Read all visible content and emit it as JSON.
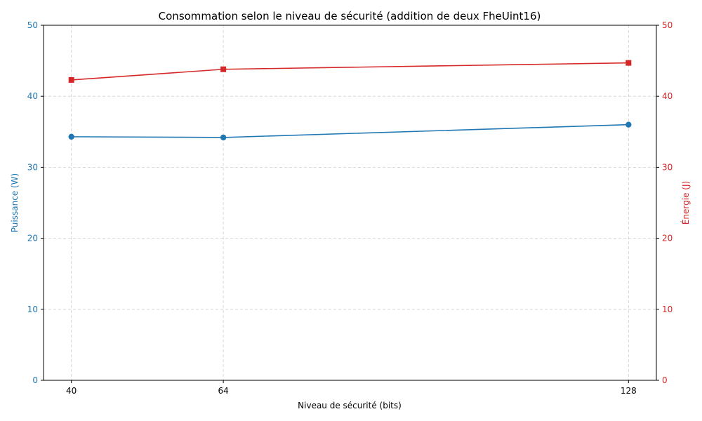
{
  "chart_data": {
    "type": "line",
    "title": "Consommation selon le niveau de sécurité (addition de deux FheUint16)",
    "xlabel": "Niveau de sécurité (bits)",
    "ylabel_left": "Puissance (W)",
    "ylabel_right": "Énergie (J)",
    "x": [
      40,
      64,
      128
    ],
    "xlim": [
      35.6,
      132.4
    ],
    "ylim_left": [
      0,
      50
    ],
    "ylim_right": [
      0,
      50
    ],
    "yticks_left": [
      0,
      10,
      20,
      30,
      40,
      50
    ],
    "yticks_right": [
      0,
      10,
      20,
      30,
      40,
      50
    ],
    "grid": true,
    "series": [
      {
        "axis": "left",
        "color": "#1f77b4",
        "marker": "circle",
        "values": [
          34.3,
          34.2,
          36.0
        ]
      },
      {
        "axis": "right",
        "color": "#d62728",
        "marker": "square",
        "values": [
          42.3,
          43.8,
          44.7
        ]
      }
    ]
  }
}
